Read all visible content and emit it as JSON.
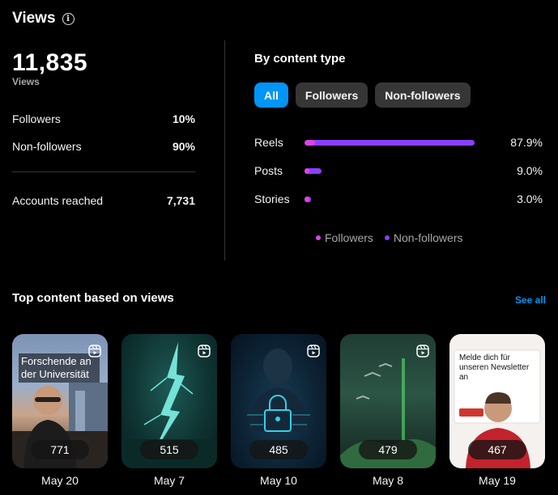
{
  "header": {
    "title": "Views"
  },
  "summary": {
    "total": "11,835",
    "total_label": "Views",
    "rows": [
      {
        "label": "Followers",
        "value": "10%"
      },
      {
        "label": "Non-followers",
        "value": "90%"
      }
    ],
    "reached": {
      "label": "Accounts reached",
      "value": "7,731"
    }
  },
  "by_type": {
    "title": "By content type",
    "filters": [
      "All",
      "Followers",
      "Non-followers"
    ],
    "active_filter": "All",
    "rows": [
      {
        "label": "Reels",
        "pct": "87.9%",
        "followers_fraction": 0.06,
        "non_followers_fraction": 0.94,
        "share": 0.879
      },
      {
        "label": "Posts",
        "pct": "9.0%",
        "followers_fraction": 0.3,
        "non_followers_fraction": 0.7,
        "share": 0.09
      },
      {
        "label": "Stories",
        "pct": "3.0%",
        "followers_fraction": 0.6,
        "non_followers_fraction": 0.4,
        "share": 0.03
      }
    ],
    "legend": [
      {
        "label": "Followers",
        "color": "#d945e8"
      },
      {
        "label": "Non-followers",
        "color": "#8a3ffc"
      }
    ]
  },
  "top_content": {
    "title": "Top content based on views",
    "see_all": "See all",
    "items": [
      {
        "count": "771",
        "date": "May 20",
        "overlay": "Forschende an der Universität"
      },
      {
        "count": "515",
        "date": "May 7",
        "overlay": ""
      },
      {
        "count": "485",
        "date": "May 10",
        "overlay": ""
      },
      {
        "count": "479",
        "date": "May 8",
        "overlay": ""
      },
      {
        "count": "467",
        "date": "May 19",
        "overlay": "Melde dich für unseren Newsletter an"
      }
    ]
  }
}
